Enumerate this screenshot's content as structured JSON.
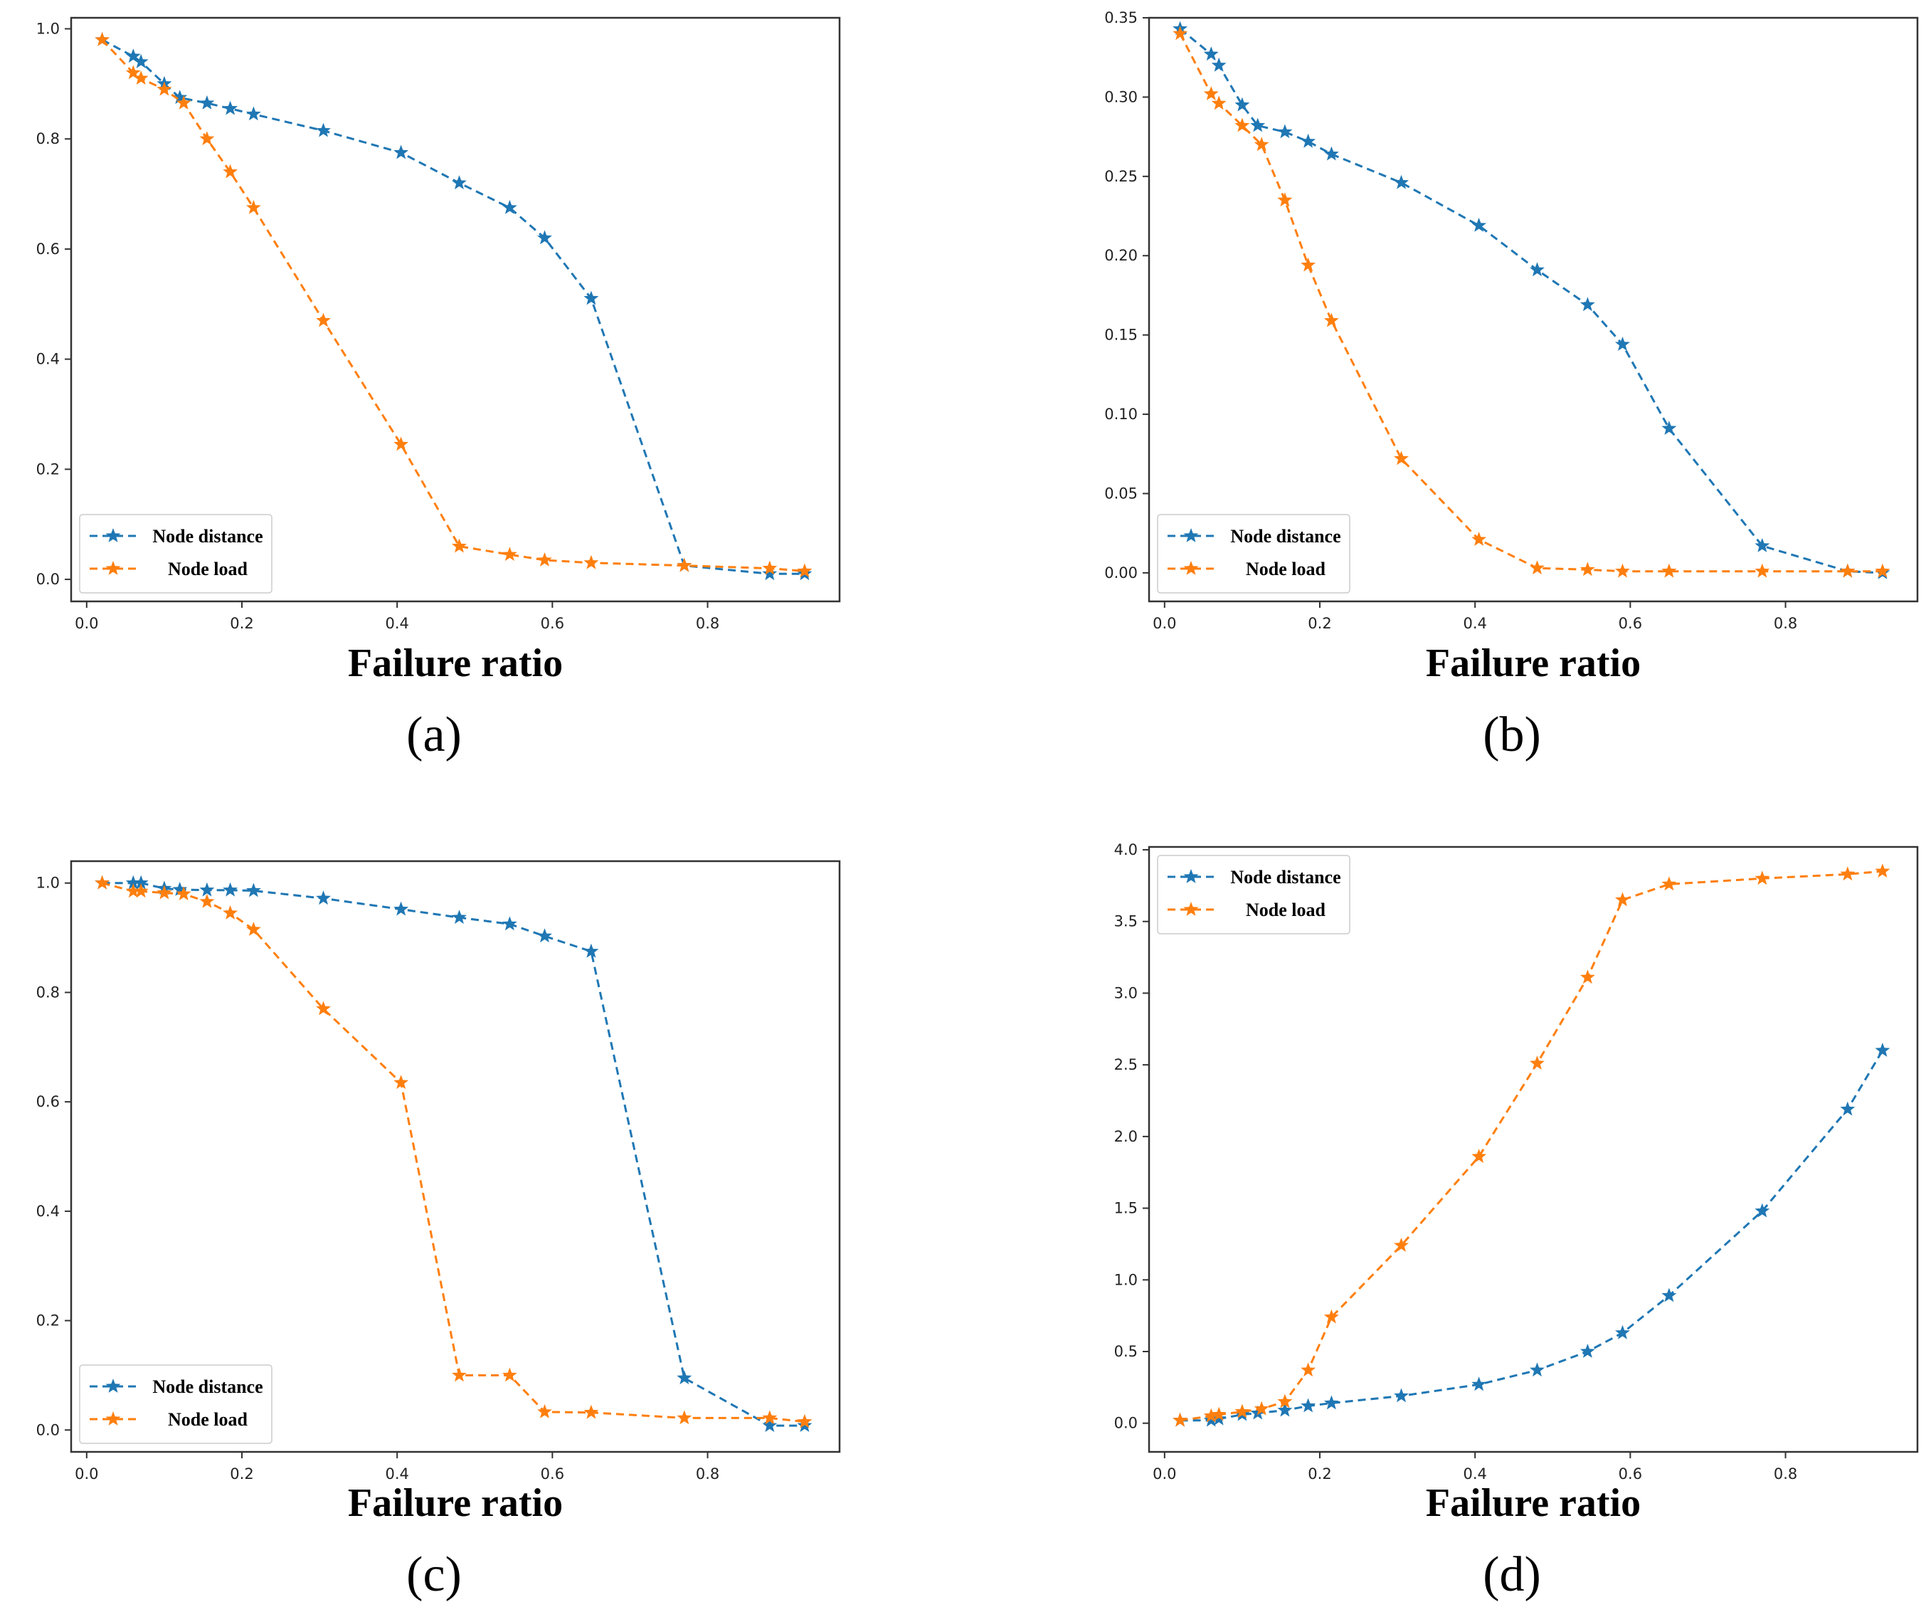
{
  "colors": {
    "node_distance": "#1f77b4",
    "node_load": "#ff7f0e"
  },
  "chart_data": [
    {
      "id": "a",
      "type": "line",
      "panel_label": "(a)",
      "xlabel": "Failure ratio",
      "ylabel": "",
      "xlim": [
        -0.02,
        0.97
      ],
      "ylim": [
        -0.04,
        1.02
      ],
      "xticks": [
        0.0,
        0.2,
        0.4,
        0.6,
        0.8
      ],
      "xtick_labels": [
        "0.0",
        "0.2",
        "0.4",
        "0.6",
        "0.8"
      ],
      "yticks": [
        0.0,
        0.2,
        0.4,
        0.6,
        0.8,
        1.0
      ],
      "ytick_labels": [
        "0.0",
        "0.2",
        "0.4",
        "0.6",
        "0.8",
        "1.0"
      ],
      "legend_position": "lower-left",
      "series": [
        {
          "name": "Node distance",
          "color_key": "node_distance",
          "x": [
            0.02,
            0.06,
            0.07,
            0.1,
            0.12,
            0.155,
            0.185,
            0.215,
            0.305,
            0.405,
            0.48,
            0.545,
            0.59,
            0.65,
            0.77,
            0.88,
            0.925
          ],
          "y": [
            0.98,
            0.95,
            0.94,
            0.9,
            0.875,
            0.865,
            0.855,
            0.845,
            0.815,
            0.775,
            0.72,
            0.675,
            0.62,
            0.51,
            0.025,
            0.01,
            0.01
          ]
        },
        {
          "name": "Node load",
          "color_key": "node_load",
          "x": [
            0.02,
            0.06,
            0.07,
            0.1,
            0.125,
            0.155,
            0.185,
            0.215,
            0.305,
            0.405,
            0.48,
            0.545,
            0.59,
            0.65,
            0.77,
            0.88,
            0.925
          ],
          "y": [
            0.98,
            0.92,
            0.91,
            0.89,
            0.865,
            0.8,
            0.74,
            0.675,
            0.47,
            0.245,
            0.06,
            0.045,
            0.035,
            0.03,
            0.025,
            0.02,
            0.015
          ]
        }
      ]
    },
    {
      "id": "b",
      "type": "line",
      "panel_label": "(b)",
      "xlabel": "Failure ratio",
      "ylabel": "",
      "xlim": [
        -0.02,
        0.97
      ],
      "ylim": [
        -0.018,
        0.35
      ],
      "xticks": [
        0.0,
        0.2,
        0.4,
        0.6,
        0.8
      ],
      "xtick_labels": [
        "0.0",
        "0.2",
        "0.4",
        "0.6",
        "0.8"
      ],
      "yticks": [
        0.0,
        0.05,
        0.1,
        0.15,
        0.2,
        0.25,
        0.3,
        0.35
      ],
      "ytick_labels": [
        "0.00",
        "0.05",
        "0.10",
        "0.15",
        "0.20",
        "0.25",
        "0.30",
        "0.35"
      ],
      "legend_position": "lower-left",
      "series": [
        {
          "name": "Node distance",
          "color_key": "node_distance",
          "x": [
            0.02,
            0.06,
            0.07,
            0.1,
            0.12,
            0.155,
            0.185,
            0.215,
            0.305,
            0.405,
            0.48,
            0.545,
            0.59,
            0.65,
            0.77,
            0.88,
            0.925
          ],
          "y": [
            0.343,
            0.327,
            0.32,
            0.295,
            0.282,
            0.278,
            0.272,
            0.264,
            0.246,
            0.219,
            0.191,
            0.169,
            0.144,
            0.091,
            0.017,
            0.001,
            0.0
          ]
        },
        {
          "name": "Node load",
          "color_key": "node_load",
          "x": [
            0.02,
            0.06,
            0.07,
            0.1,
            0.125,
            0.155,
            0.185,
            0.215,
            0.305,
            0.405,
            0.48,
            0.545,
            0.59,
            0.65,
            0.77,
            0.88,
            0.925
          ],
          "y": [
            0.34,
            0.302,
            0.296,
            0.282,
            0.27,
            0.235,
            0.194,
            0.159,
            0.072,
            0.021,
            0.003,
            0.002,
            0.001,
            0.001,
            0.001,
            0.001,
            0.001
          ]
        }
      ]
    },
    {
      "id": "c",
      "type": "line",
      "panel_label": "(c)",
      "xlabel": "Failure ratio",
      "ylabel": "",
      "xlim": [
        -0.02,
        0.97
      ],
      "ylim": [
        -0.04,
        1.04
      ],
      "xticks": [
        0.0,
        0.2,
        0.4,
        0.6,
        0.8
      ],
      "xtick_labels": [
        "0.0",
        "0.2",
        "0.4",
        "0.6",
        "0.8"
      ],
      "yticks": [
        0.0,
        0.2,
        0.4,
        0.6,
        0.8,
        1.0
      ],
      "ytick_labels": [
        "0.0",
        "0.2",
        "0.4",
        "0.6",
        "0.8",
        "1.0"
      ],
      "legend_position": "lower-left",
      "series": [
        {
          "name": "Node distance",
          "color_key": "node_distance",
          "x": [
            0.02,
            0.06,
            0.07,
            0.1,
            0.12,
            0.155,
            0.185,
            0.215,
            0.305,
            0.405,
            0.48,
            0.545,
            0.59,
            0.65,
            0.77,
            0.88,
            0.925
          ],
          "y": [
            1.0,
            1.0,
            1.0,
            0.99,
            0.988,
            0.987,
            0.987,
            0.986,
            0.972,
            0.952,
            0.937,
            0.925,
            0.903,
            0.875,
            0.095,
            0.008,
            0.008
          ]
        },
        {
          "name": "Node load",
          "color_key": "node_load",
          "x": [
            0.02,
            0.06,
            0.07,
            0.1,
            0.125,
            0.155,
            0.185,
            0.215,
            0.305,
            0.405,
            0.48,
            0.545,
            0.59,
            0.65,
            0.77,
            0.88,
            0.925
          ],
          "y": [
            1.0,
            0.985,
            0.985,
            0.982,
            0.98,
            0.966,
            0.945,
            0.915,
            0.77,
            0.635,
            0.1,
            0.1,
            0.033,
            0.032,
            0.022,
            0.022,
            0.015
          ]
        }
      ]
    },
    {
      "id": "d",
      "type": "line",
      "panel_label": "(d)",
      "xlabel": "Failure ratio",
      "ylabel": "",
      "xlim": [
        -0.02,
        0.97
      ],
      "ylim": [
        -0.2,
        4.02
      ],
      "xticks": [
        0.0,
        0.2,
        0.4,
        0.6,
        0.8
      ],
      "xtick_labels": [
        "0.0",
        "0.2",
        "0.4",
        "0.6",
        "0.8"
      ],
      "yticks": [
        0.0,
        0.5,
        1.0,
        1.5,
        2.0,
        2.5,
        3.0,
        3.5,
        4.0
      ],
      "ytick_labels": [
        "0.0",
        "0.5",
        "1.0",
        "1.5",
        "2.0",
        "2.5",
        "3.0",
        "3.5",
        "4.0"
      ],
      "legend_position": "upper-left",
      "series": [
        {
          "name": "Node distance",
          "color_key": "node_distance",
          "x": [
            0.02,
            0.06,
            0.07,
            0.1,
            0.12,
            0.155,
            0.185,
            0.215,
            0.305,
            0.405,
            0.48,
            0.545,
            0.59,
            0.65,
            0.77,
            0.88,
            0.925
          ],
          "y": [
            0.02,
            0.02,
            0.03,
            0.06,
            0.07,
            0.09,
            0.12,
            0.14,
            0.19,
            0.27,
            0.37,
            0.5,
            0.63,
            0.89,
            1.48,
            2.19,
            2.6
          ]
        },
        {
          "name": "Node load",
          "color_key": "node_load",
          "x": [
            0.02,
            0.06,
            0.07,
            0.1,
            0.125,
            0.155,
            0.185,
            0.215,
            0.305,
            0.405,
            0.48,
            0.545,
            0.59,
            0.65,
            0.77,
            0.88,
            0.925
          ],
          "y": [
            0.02,
            0.05,
            0.06,
            0.08,
            0.1,
            0.15,
            0.37,
            0.74,
            1.24,
            1.86,
            2.51,
            3.11,
            3.65,
            3.76,
            3.8,
            3.83,
            3.85
          ]
        }
      ]
    }
  ]
}
